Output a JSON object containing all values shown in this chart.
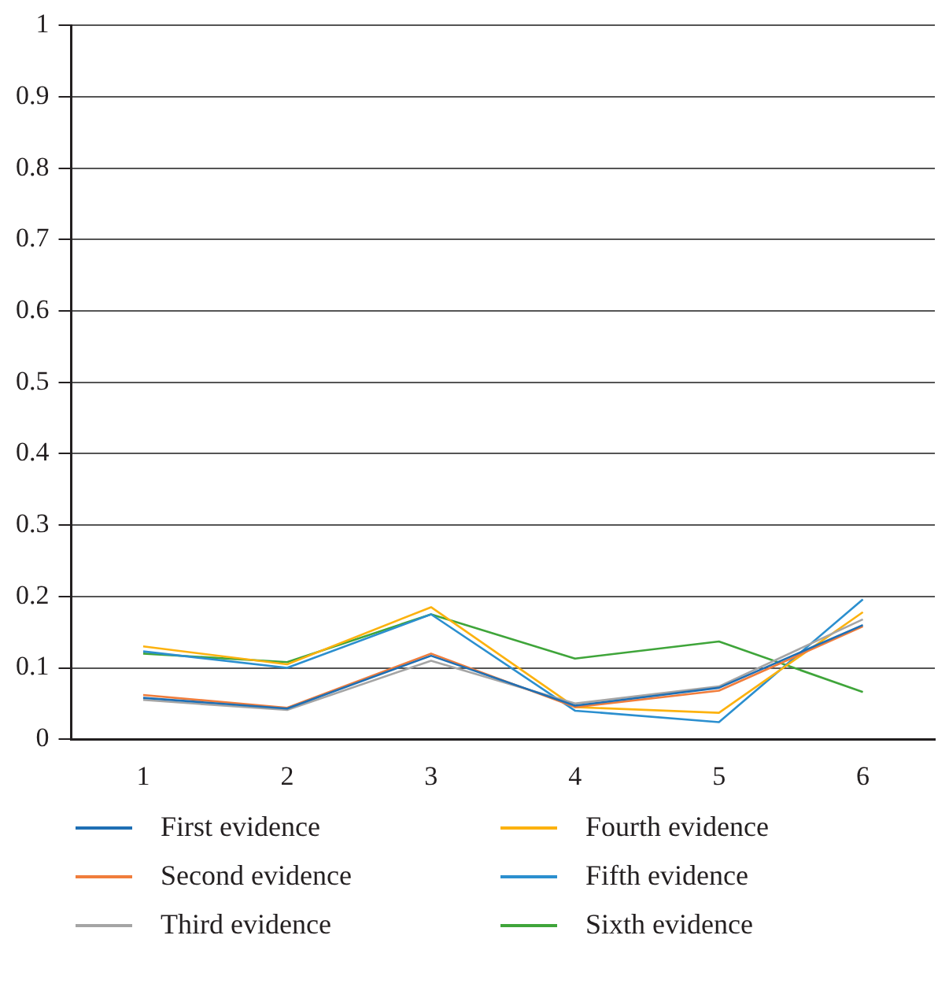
{
  "chart_data": {
    "type": "line",
    "categories": [
      "1",
      "2",
      "3",
      "4",
      "5",
      "6"
    ],
    "series": [
      {
        "name": "First evidence",
        "color": "#1f6fb4",
        "values": [
          0.058,
          0.043,
          0.117,
          0.047,
          0.072,
          0.16
        ]
      },
      {
        "name": "Second evidence",
        "color": "#f07d3c",
        "values": [
          0.062,
          0.044,
          0.12,
          0.045,
          0.068,
          0.158
        ]
      },
      {
        "name": "Third evidence",
        "color": "#a5a5a5",
        "values": [
          0.055,
          0.041,
          0.11,
          0.05,
          0.074,
          0.168
        ]
      },
      {
        "name": "Fourth evidence",
        "color": "#fcb20f",
        "values": [
          0.13,
          0.105,
          0.185,
          0.045,
          0.037,
          0.178
        ]
      },
      {
        "name": "Fifth evidence",
        "color": "#2b8fcf",
        "values": [
          0.123,
          0.1,
          0.175,
          0.04,
          0.024,
          0.196
        ]
      },
      {
        "name": "Sixth evidence",
        "color": "#3fa53a",
        "values": [
          0.12,
          0.108,
          0.175,
          0.113,
          0.137,
          0.066
        ]
      }
    ],
    "ylim": [
      0,
      1
    ],
    "yticks": [
      0,
      0.1,
      0.2,
      0.3,
      0.4,
      0.5,
      0.6,
      0.7,
      0.8,
      0.9,
      1
    ],
    "grid": "y",
    "legend": "bottom",
    "marker": "none",
    "line_style": "solid"
  }
}
